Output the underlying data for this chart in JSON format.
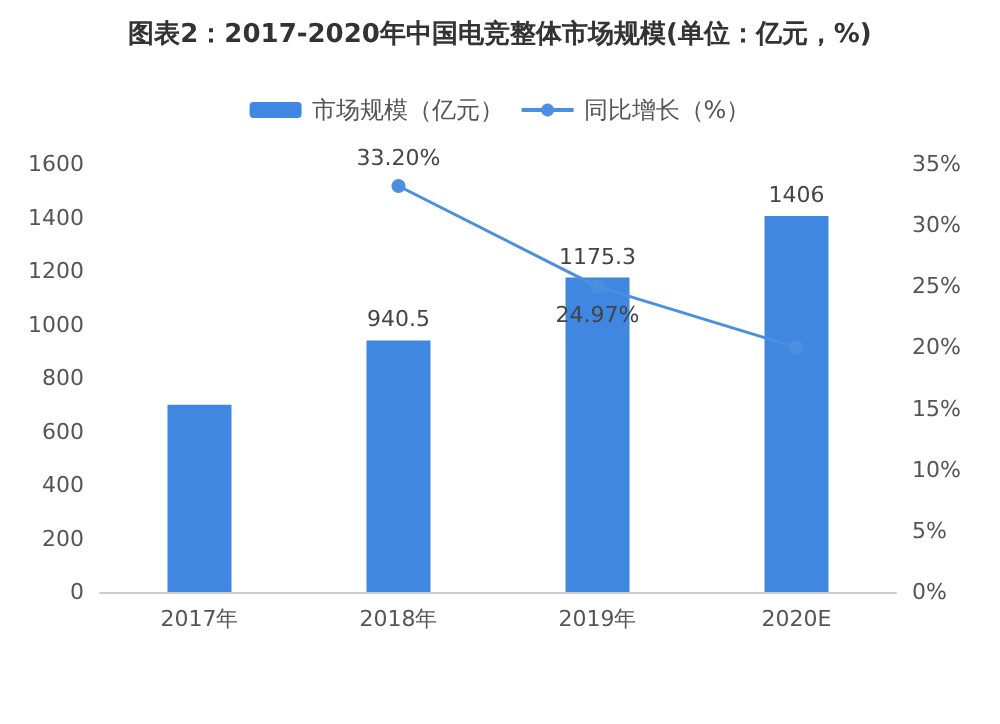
{
  "chart_data": {
    "type": "bar",
    "title": "图表2：2017-2020年中国电竞整体市场规模(单位：亿元，%)",
    "categories": [
      "2017年",
      "2018年",
      "2019年",
      "2020E"
    ],
    "series": [
      {
        "name": "市场规模（亿元）",
        "color": "#3f87e0",
        "values": [
          700,
          940.5,
          1175.3,
          1406
        ],
        "value_labels": [
          null,
          "940.5",
          "1175.3",
          "1406"
        ]
      },
      {
        "name": "同比增长（%）",
        "type": "line",
        "axis": "y2",
        "color": "#4a8fe0",
        "marker": "circle",
        "values": [
          null,
          33.2,
          24.97,
          20
        ],
        "value_labels": [
          null,
          "33.20%",
          "24.97%",
          null
        ]
      }
    ],
    "ylim": [
      0,
      1600
    ],
    "yticks": [
      0,
      200,
      400,
      600,
      800,
      1000,
      1200,
      1400,
      1600
    ],
    "y2lim": [
      0,
      35
    ],
    "y2ticks": [
      {
        "value": 0,
        "label": "0%"
      },
      {
        "value": 5,
        "label": "5%"
      },
      {
        "value": 10,
        "label": "10%"
      },
      {
        "value": 15,
        "label": "15%"
      },
      {
        "value": 20,
        "label": "20%"
      },
      {
        "value": 25,
        "label": "25%"
      },
      {
        "value": 30,
        "label": "30%"
      },
      {
        "value": 35,
        "label": "35%"
      }
    ],
    "grid": false,
    "legend": "top"
  }
}
